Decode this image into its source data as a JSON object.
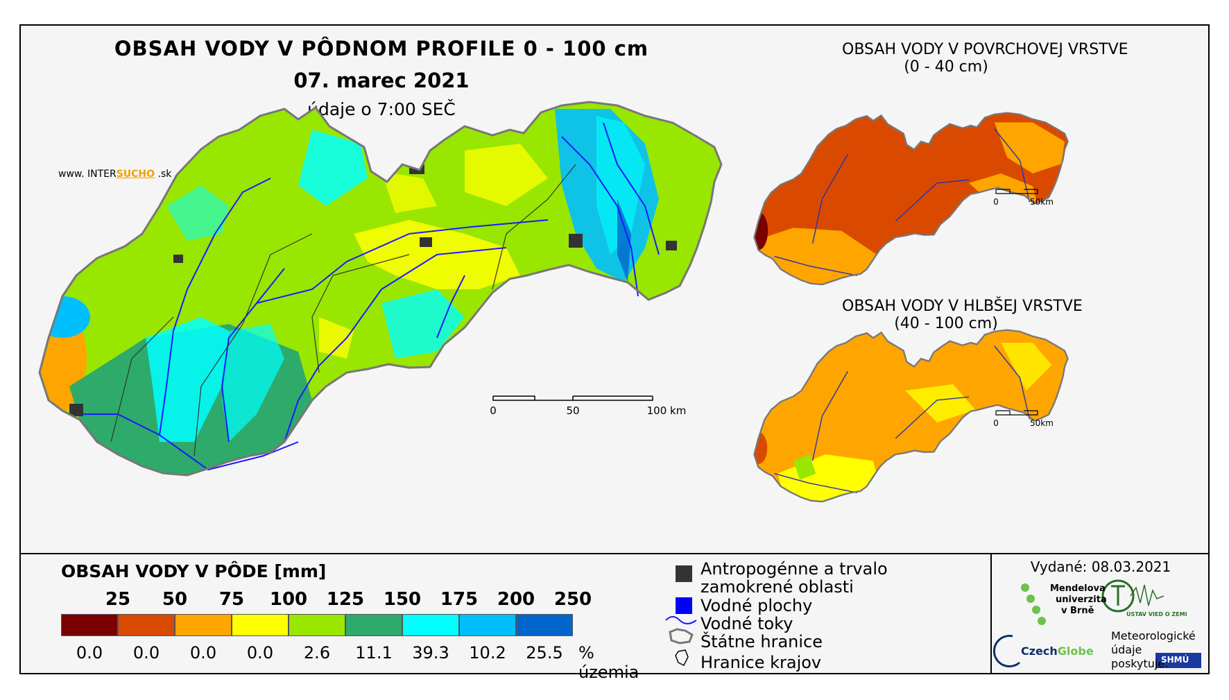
{
  "title": "OBSAH VODY V PÔDNOM PROFILE 0 - 100 cm",
  "date": "07. marec 2021",
  "subtitle": "údaje o 7:00 SEČ",
  "website": {
    "prefix": "www. ",
    "brand_a": "INTER",
    "brand_b": "SUCHO",
    "suffix": " .sk"
  },
  "inset_surface": {
    "title_line1": "OBSAH VODY V POVRCHOVEJ VRSTVE",
    "title_line2": "(0 - 40 cm)"
  },
  "inset_deep": {
    "title_line1": "OBSAH VODY V HLBŠEJ VRSTVE",
    "title_line2": "(40 - 100 cm)"
  },
  "main_scale": {
    "labels": [
      "0",
      "50",
      "100 km"
    ]
  },
  "inset_scale": {
    "labels": [
      "0",
      "50km"
    ]
  },
  "legend": {
    "title": "OBSAH VODY V PÔDE [mm]",
    "thresholds": [
      "25",
      "50",
      "75",
      "100",
      "125",
      "150",
      "175",
      "200",
      "250"
    ],
    "colors": [
      "#7b0000",
      "#d94a00",
      "#ffa500",
      "#ffff00",
      "#99e600",
      "#2eaa6a",
      "#00ffff",
      "#00bfff",
      "#0066cc"
    ],
    "percentages": [
      "0.0",
      "0.0",
      "0.0",
      "0.0",
      "2.6",
      "11.1",
      "39.3",
      "10.2",
      "25.5"
    ],
    "unit": "% územia"
  },
  "symbols": {
    "urban_line1": "Antropogénne a trvalo",
    "urban_line2": "zamokrené oblasti",
    "water_bodies": "Vodné plochy",
    "rivers": "Vodné toky",
    "state_border": "Štátne hranice",
    "region_border": "Hranice krajov"
  },
  "issued": "Vydané: 08.03.2021",
  "logos": {
    "mendel_1": "Mendelova",
    "mendel_2": "univerzita",
    "mendel_3": "v Brně",
    "czechglobe_a": "Czech",
    "czechglobe_b": "Globe",
    "uvz": "ÚSTAV VIED O ZEMI",
    "met_1": "Meteorologické",
    "met_2": "údaje",
    "met_3": "poskytuje:",
    "shmu": "SHMÚ"
  }
}
